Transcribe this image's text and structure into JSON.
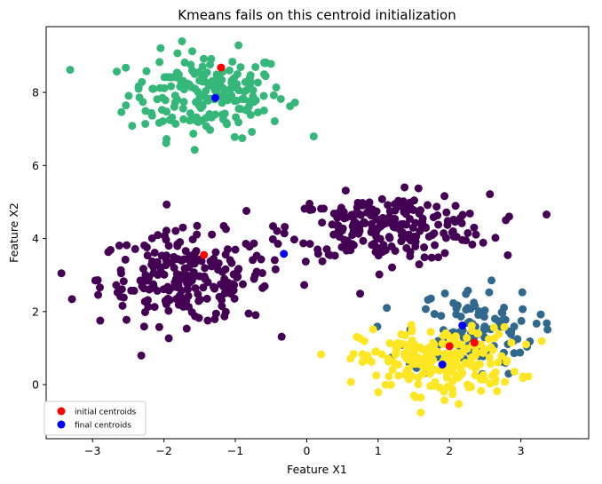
{
  "chart_data": {
    "type": "scatter",
    "title": "Kmeans fails on this centroid initialization",
    "xlabel": "Feature X1",
    "ylabel": "Feature X2",
    "xlim": [
      -3.65,
      3.95
    ],
    "ylim": [
      -1.48,
      9.8
    ],
    "xticks": [
      -3,
      -2,
      -1,
      0,
      1,
      2,
      3
    ],
    "yticks": [
      0,
      2,
      4,
      6,
      8
    ],
    "grid": false,
    "legend_position": "lower-left",
    "colors": {
      "cluster_top": "#35b779",
      "cluster_purple": "#440154",
      "cluster_blue": "#31688e",
      "cluster_yellow": "#fde725",
      "initial_centroids": "#ff0000",
      "final_centroids": "#0000ff"
    },
    "clusters": [
      {
        "color_key": "cluster_top",
        "center": [
          -1.4,
          7.95
        ],
        "spread": [
          0.55,
          0.58
        ],
        "count": 200
      },
      {
        "color_key": "cluster_purple",
        "center": [
          -1.7,
          2.9
        ],
        "spread": [
          0.6,
          0.62
        ],
        "count": 230
      },
      {
        "color_key": "cluster_purple",
        "center": [
          1.15,
          4.3
        ],
        "spread": [
          0.7,
          0.45
        ],
        "count": 240
      },
      {
        "color_key": "cluster_blue",
        "center": [
          2.3,
          1.45
        ],
        "spread": [
          0.45,
          0.6
        ],
        "count": 110
      },
      {
        "color_key": "cluster_yellow",
        "center": [
          1.85,
          0.65
        ],
        "spread": [
          0.55,
          0.45
        ],
        "count": 230
      }
    ],
    "series": [
      {
        "name": "initial centroids",
        "color_key": "initial_centroids",
        "points": [
          [
            -1.2,
            8.68
          ],
          [
            -1.44,
            3.55
          ],
          [
            2.0,
            1.05
          ],
          [
            2.35,
            1.15
          ]
        ]
      },
      {
        "name": "final centroids",
        "color_key": "final_centroids",
        "points": [
          [
            -1.28,
            7.85
          ],
          [
            -0.32,
            3.58
          ],
          [
            2.18,
            1.62
          ],
          [
            1.9,
            0.55
          ]
        ]
      }
    ]
  }
}
